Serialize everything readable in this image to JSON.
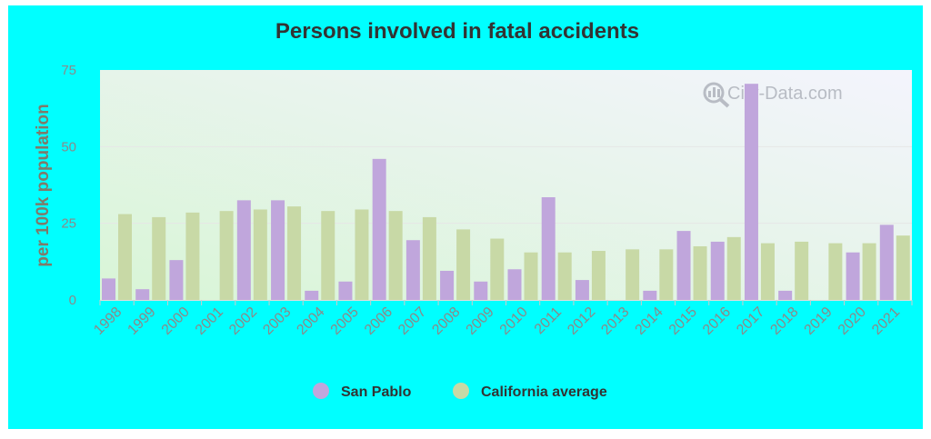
{
  "chart_data": {
    "type": "bar",
    "title": "Persons involved in fatal accidents",
    "ylabel": "per 100k population",
    "xlabel": "",
    "ylim": [
      0,
      75
    ],
    "yticks": [
      "0",
      "25",
      "50",
      "75"
    ],
    "grid": true,
    "legend_position": "bottom-center",
    "categories": [
      "1998",
      "1999",
      "2000",
      "2001",
      "2002",
      "2003",
      "2004",
      "2005",
      "2006",
      "2007",
      "2008",
      "2009",
      "2010",
      "2011",
      "2012",
      "2013",
      "2014",
      "2015",
      "2016",
      "2017",
      "2018",
      "2019",
      "2020",
      "2021"
    ],
    "series": [
      {
        "name": "San Pablo",
        "color": "#c0a6dc",
        "values": [
          7,
          3.5,
          13,
          null,
          32.5,
          32.5,
          3,
          6,
          46,
          19.5,
          9.5,
          6,
          10,
          33.5,
          6.5,
          null,
          3,
          22.5,
          19,
          70.5,
          3,
          null,
          15.5,
          24.5
        ]
      },
      {
        "name": "California average",
        "color": "#c8d9a6",
        "values": [
          28,
          27,
          28.5,
          29,
          29.5,
          30.5,
          29,
          29.5,
          29,
          27,
          23,
          20,
          15.5,
          15.5,
          16,
          16.5,
          16.5,
          17.5,
          20.5,
          18.5,
          19,
          18.5,
          18.5,
          21
        ]
      }
    ]
  },
  "watermark": "City-Data.com",
  "icons": {
    "watermark": "magnifier-icon",
    "legend_marker": "circle-icon"
  }
}
